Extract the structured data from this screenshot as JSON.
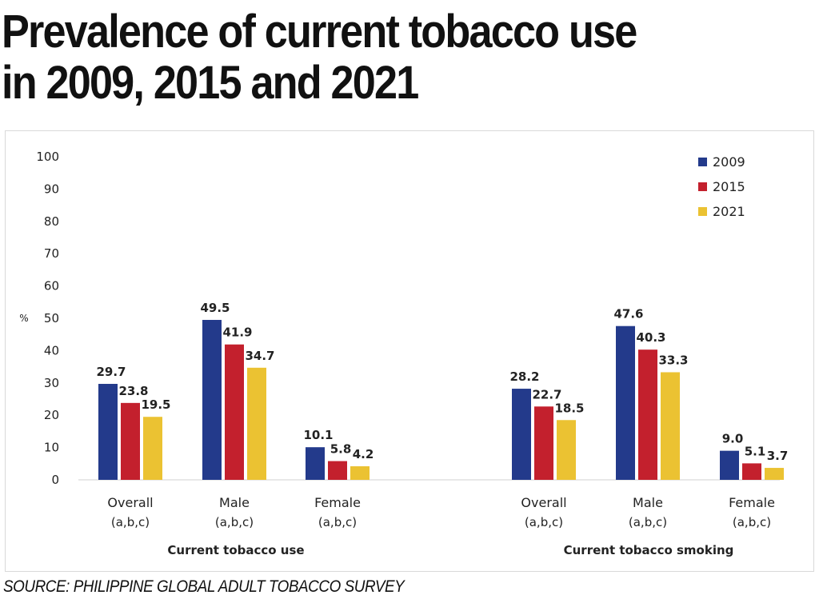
{
  "title_line1": "Prevalence of current tobacco use",
  "title_line2": "in 2009, 2015 and 2021",
  "source": "SOURCE: PHILIPPINE GLOBAL ADULT TOBACCO SURVEY",
  "chart_data": {
    "type": "bar",
    "ylabel": "%",
    "ylim": [
      0,
      100
    ],
    "yticks": [
      0,
      10,
      20,
      30,
      40,
      50,
      60,
      70,
      80,
      90,
      100
    ],
    "legend_position": "top-right",
    "series": [
      {
        "name": "2009",
        "color": "#233a8b"
      },
      {
        "name": "2015",
        "color": "#c3202d"
      },
      {
        "name": "2021",
        "color": "#ebc232"
      }
    ],
    "groups": [
      {
        "label": "Current tobacco use",
        "categories": [
          {
            "label": "Overall",
            "sub": "(a,b,c)",
            "values": [
              29.7,
              23.8,
              19.5
            ]
          },
          {
            "label": "Male",
            "sub": "(a,b,c)",
            "values": [
              49.5,
              41.9,
              34.7
            ]
          },
          {
            "label": "Female",
            "sub": "(a,b,c)",
            "values": [
              10.1,
              5.8,
              4.2
            ]
          }
        ]
      },
      {
        "label": "Current tobacco smoking",
        "categories": [
          {
            "label": "Overall",
            "sub": "(a,b,c)",
            "values": [
              28.2,
              22.7,
              18.5
            ]
          },
          {
            "label": "Male",
            "sub": "(a,b,c)",
            "values": [
              47.6,
              40.3,
              33.3
            ]
          },
          {
            "label": "Female",
            "sub": "(a,b,c)",
            "values": [
              9.0,
              5.1,
              3.7
            ]
          }
        ]
      }
    ]
  }
}
